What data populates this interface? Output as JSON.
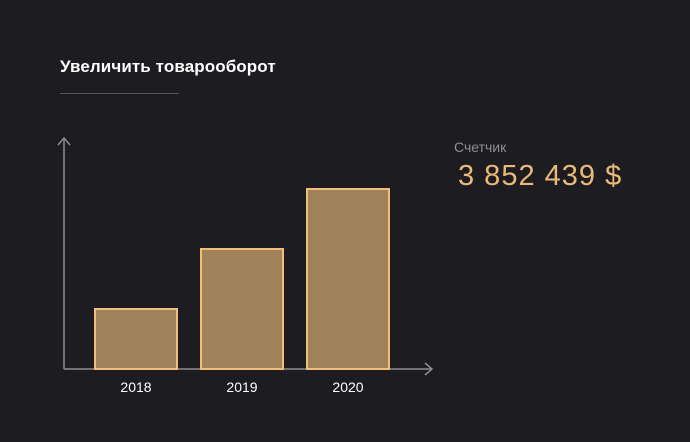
{
  "header": {
    "title": "Увеличить товарооборот"
  },
  "counter": {
    "label": "Счетчик",
    "value": "3 852 439 $"
  },
  "colors": {
    "background": "#1d1c21",
    "bar_fill": "#a0825a",
    "bar_stroke": "#f2be7a",
    "axis": "#8e8d92",
    "accent_text": "#e9b977"
  },
  "chart_data": {
    "type": "bar",
    "categories": [
      "2018",
      "2019",
      "2020"
    ],
    "values": [
      1,
      2,
      3
    ],
    "title": "",
    "xlabel": "",
    "ylabel": "",
    "ylim": [
      0,
      4
    ],
    "grid": false
  }
}
